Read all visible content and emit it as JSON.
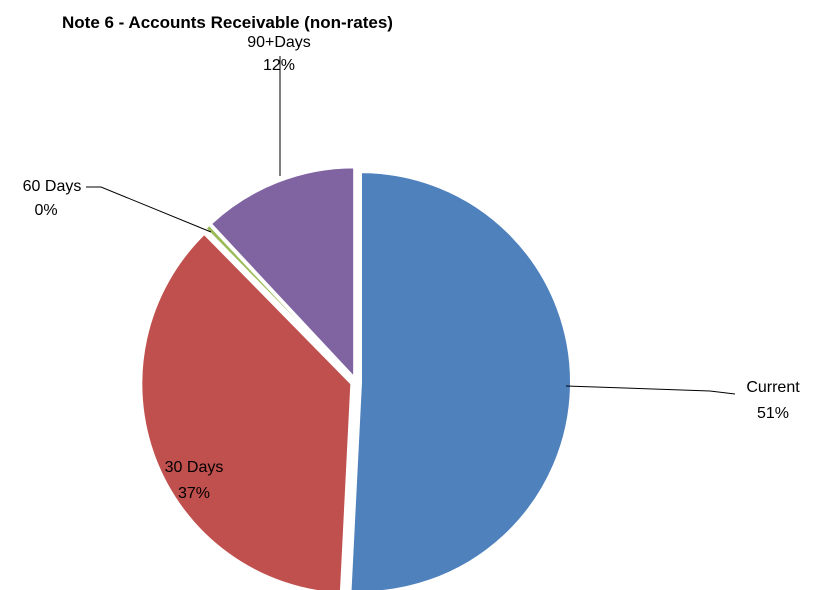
{
  "chart_data": {
    "type": "pie",
    "title": "Note 6 - Accounts Receivable (non-rates)",
    "categories": [
      "Current",
      "30 Days",
      "60 Days",
      "90+Days"
    ],
    "values": [
      51,
      37,
      0.4,
      12
    ],
    "labels": [
      {
        "name": "Current",
        "percent": "51%"
      },
      {
        "name": "30 Days",
        "percent": "37%"
      },
      {
        "name": "60 Days",
        "percent": "0%"
      },
      {
        "name": "90+Days",
        "percent": "12%"
      }
    ],
    "colors": [
      "#4f81bd",
      "#c0504d",
      "#9bbb59",
      "#8064a2"
    ],
    "exploded": true,
    "legend": "none"
  }
}
